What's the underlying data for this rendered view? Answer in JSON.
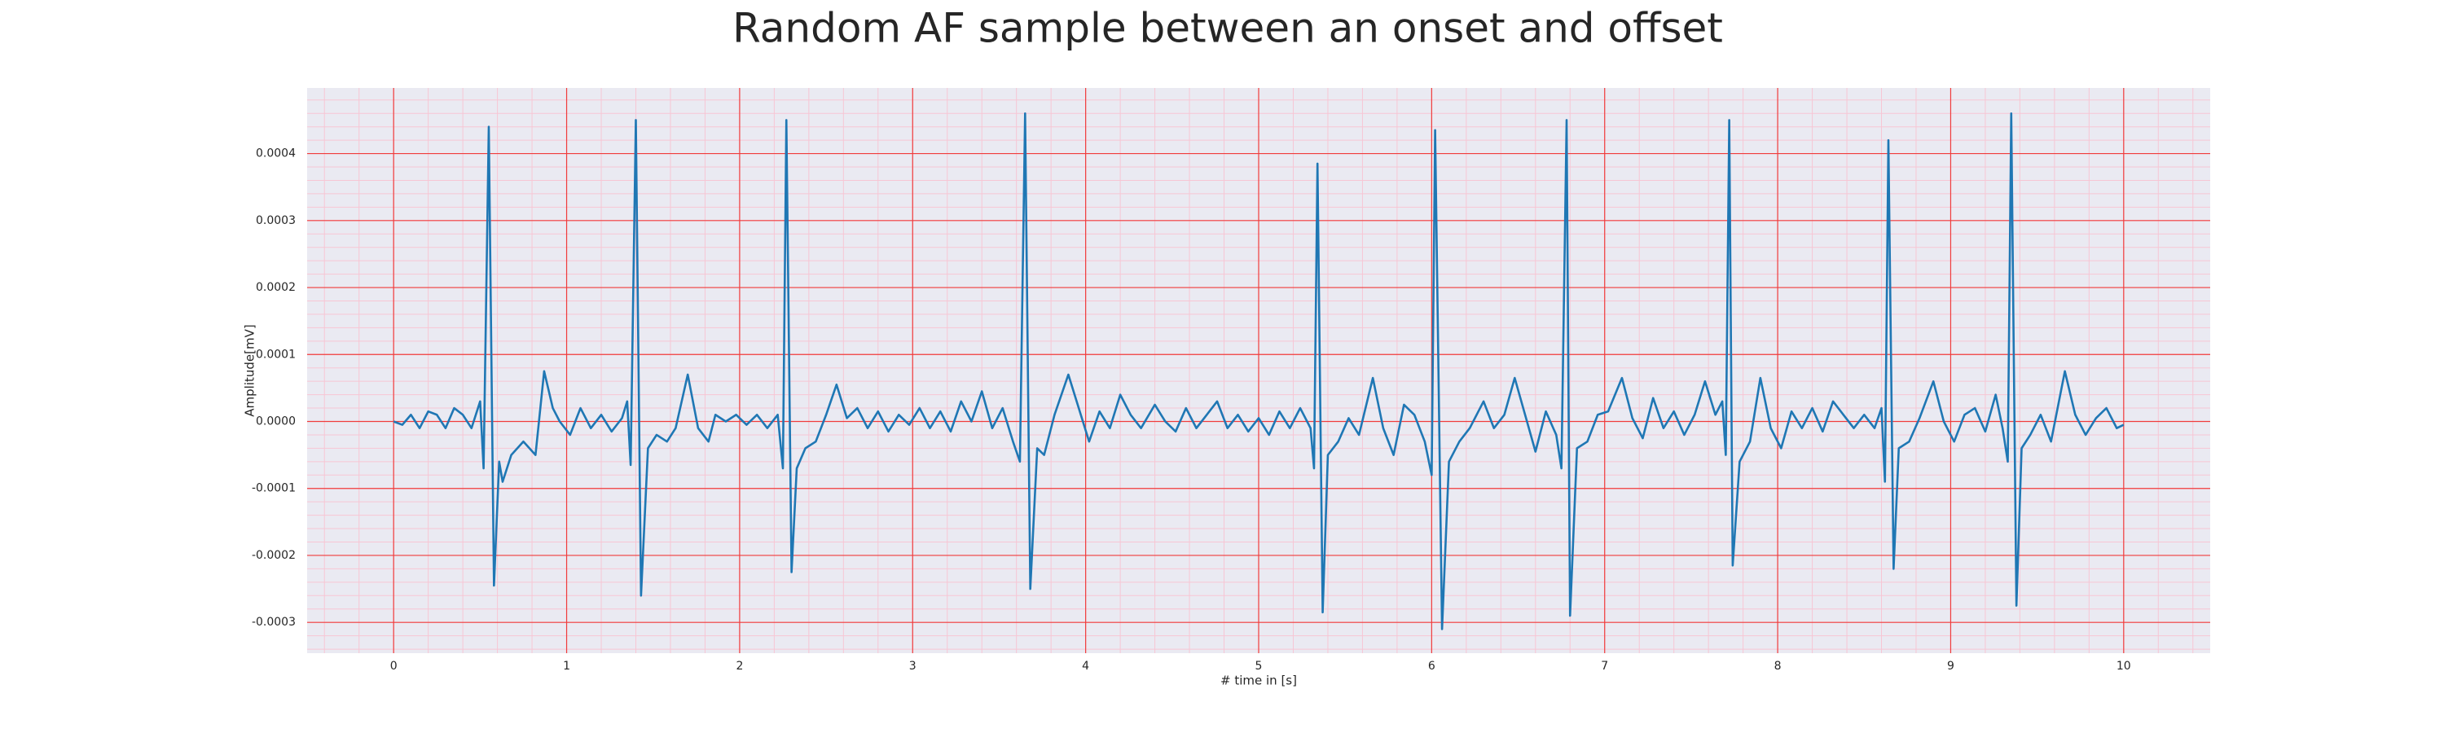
{
  "chart_data": {
    "type": "line",
    "title": "Random AF sample between an onset and offset",
    "xlabel": "# time in [s]",
    "ylabel": "Amplitude[mV]",
    "color": "#1f77b4",
    "grid": true,
    "xlim": [
      -0.5,
      10.5
    ],
    "xticks": [
      0,
      1,
      2,
      3,
      4,
      5,
      6,
      7,
      8,
      9,
      10
    ],
    "ylim": [
      -0.000346,
      0.000498
    ],
    "yticks": [
      -0.0003,
      -0.0002,
      -0.0001,
      {
        "value": 0,
        "label": "0.0000"
      },
      0.0001,
      0.0002,
      0.0003,
      0.0004
    ],
    "x": [
      0,
      0.05,
      0.1,
      0.15,
      0.2,
      0.25,
      0.3,
      0.35,
      0.4,
      0.45,
      0.5,
      0.52,
      0.55,
      0.58,
      0.61,
      0.63,
      0.68,
      0.75,
      0.82,
      0.87,
      0.92,
      0.96,
      1.02,
      1.08,
      1.14,
      1.2,
      1.26,
      1.32,
      1.35,
      1.37,
      1.4,
      1.43,
      1.47,
      1.52,
      1.58,
      1.63,
      1.7,
      1.76,
      1.82,
      1.86,
      1.92,
      1.98,
      2.04,
      2.1,
      2.16,
      2.22,
      2.25,
      2.27,
      2.3,
      2.33,
      2.38,
      2.44,
      2.5,
      2.56,
      2.62,
      2.68,
      2.74,
      2.8,
      2.86,
      2.92,
      2.98,
      3.04,
      3.1,
      3.16,
      3.22,
      3.28,
      3.34,
      3.4,
      3.46,
      3.52,
      3.58,
      3.62,
      3.65,
      3.68,
      3.72,
      3.76,
      3.82,
      3.9,
      3.96,
      4.02,
      4.08,
      4.14,
      4.2,
      4.26,
      4.32,
      4.4,
      4.46,
      4.52,
      4.58,
      4.64,
      4.7,
      4.76,
      4.82,
      4.88,
      4.94,
      5.0,
      5.06,
      5.12,
      5.18,
      5.24,
      5.3,
      5.32,
      5.34,
      5.37,
      5.4,
      5.46,
      5.52,
      5.58,
      5.66,
      5.72,
      5.78,
      5.84,
      5.9,
      5.96,
      6.0,
      6.02,
      6.06,
      6.1,
      6.16,
      6.22,
      6.3,
      6.36,
      6.42,
      6.48,
      6.54,
      6.6,
      6.66,
      6.72,
      6.75,
      6.78,
      6.8,
      6.84,
      6.9,
      6.96,
      7.02,
      7.1,
      7.16,
      7.22,
      7.28,
      7.34,
      7.4,
      7.46,
      7.52,
      7.58,
      7.64,
      7.68,
      7.7,
      7.72,
      7.74,
      7.78,
      7.84,
      7.9,
      7.96,
      8.02,
      8.08,
      8.14,
      8.2,
      8.26,
      8.32,
      8.38,
      8.44,
      8.5,
      8.56,
      8.6,
      8.62,
      8.64,
      8.67,
      8.7,
      8.76,
      8.82,
      8.9,
      8.96,
      9.02,
      9.08,
      9.14,
      9.2,
      9.26,
      9.3,
      9.33,
      9.35,
      9.38,
      9.41,
      9.46,
      9.52,
      9.58,
      9.66,
      9.72,
      9.78,
      9.84,
      9.9,
      9.96,
      10.0
    ],
    "values": [
      0,
      -5e-06,
      1e-05,
      -1e-05,
      1.5e-05,
      1e-05,
      -1e-05,
      2e-05,
      1e-05,
      -1e-05,
      3e-05,
      -7e-05,
      0.00044,
      -0.000245,
      -6e-05,
      -9e-05,
      -5e-05,
      -3e-05,
      -5e-05,
      7.5e-05,
      2e-05,
      0,
      -2e-05,
      2e-05,
      -1e-05,
      1e-05,
      -1.5e-05,
      5e-06,
      3e-05,
      -6.5e-05,
      0.00045,
      -0.00026,
      -4e-05,
      -2e-05,
      -3e-05,
      -1e-05,
      7e-05,
      -1e-05,
      -3e-05,
      1e-05,
      0,
      1e-05,
      -5e-06,
      1e-05,
      -1e-05,
      1e-05,
      -7e-05,
      0.00045,
      -0.000225,
      -7e-05,
      -4e-05,
      -3e-05,
      1e-05,
      5.5e-05,
      5e-06,
      2e-05,
      -1e-05,
      1.5e-05,
      -1.5e-05,
      1e-05,
      -5e-06,
      2e-05,
      -1e-05,
      1.5e-05,
      -1.5e-05,
      3e-05,
      0,
      4.5e-05,
      -1e-05,
      2e-05,
      -3e-05,
      -6e-05,
      0.00046,
      -0.00025,
      -4e-05,
      -5e-05,
      1e-05,
      7e-05,
      2e-05,
      -3e-05,
      1.5e-05,
      -1e-05,
      4e-05,
      1e-05,
      -1e-05,
      2.5e-05,
      0,
      -1.5e-05,
      2e-05,
      -1e-05,
      1e-05,
      3e-05,
      -1e-05,
      1e-05,
      -1.5e-05,
      5e-06,
      -2e-05,
      1.5e-05,
      -1e-05,
      2e-05,
      -1e-05,
      -7e-05,
      0.000385,
      -0.000285,
      -5e-05,
      -3e-05,
      5e-06,
      -2e-05,
      6.5e-05,
      -1e-05,
      -5e-05,
      2.5e-05,
      1e-05,
      -3e-05,
      -8e-05,
      0.000435,
      -0.00031,
      -6e-05,
      -3e-05,
      -1e-05,
      3e-05,
      -1e-05,
      1e-05,
      6.5e-05,
      1e-05,
      -4.5e-05,
      1.5e-05,
      -2e-05,
      -7e-05,
      0.00045,
      -0.00029,
      -4e-05,
      -3e-05,
      1e-05,
      1.5e-05,
      6.5e-05,
      5e-06,
      -2.5e-05,
      3.5e-05,
      -1e-05,
      1.5e-05,
      -2e-05,
      1e-05,
      6e-05,
      1e-05,
      3e-05,
      -5e-05,
      0.00045,
      -0.000215,
      -6e-05,
      -3e-05,
      6.5e-05,
      -1e-05,
      -4e-05,
      1.5e-05,
      -1e-05,
      2e-05,
      -1.5e-05,
      3e-05,
      1e-05,
      -1e-05,
      1e-05,
      -1e-05,
      2e-05,
      -9e-05,
      0.00042,
      -0.00022,
      -4e-05,
      -3e-05,
      5e-06,
      6e-05,
      0,
      -3e-05,
      1e-05,
      2e-05,
      -1.5e-05,
      4e-05,
      -1e-05,
      -6e-05,
      0.00046,
      -0.000275,
      -4e-05,
      -2e-05,
      1e-05,
      -3e-05,
      7.5e-05,
      1e-05,
      -2e-05,
      5e-06,
      2e-05,
      -1e-05,
      -5e-06
    ]
  }
}
